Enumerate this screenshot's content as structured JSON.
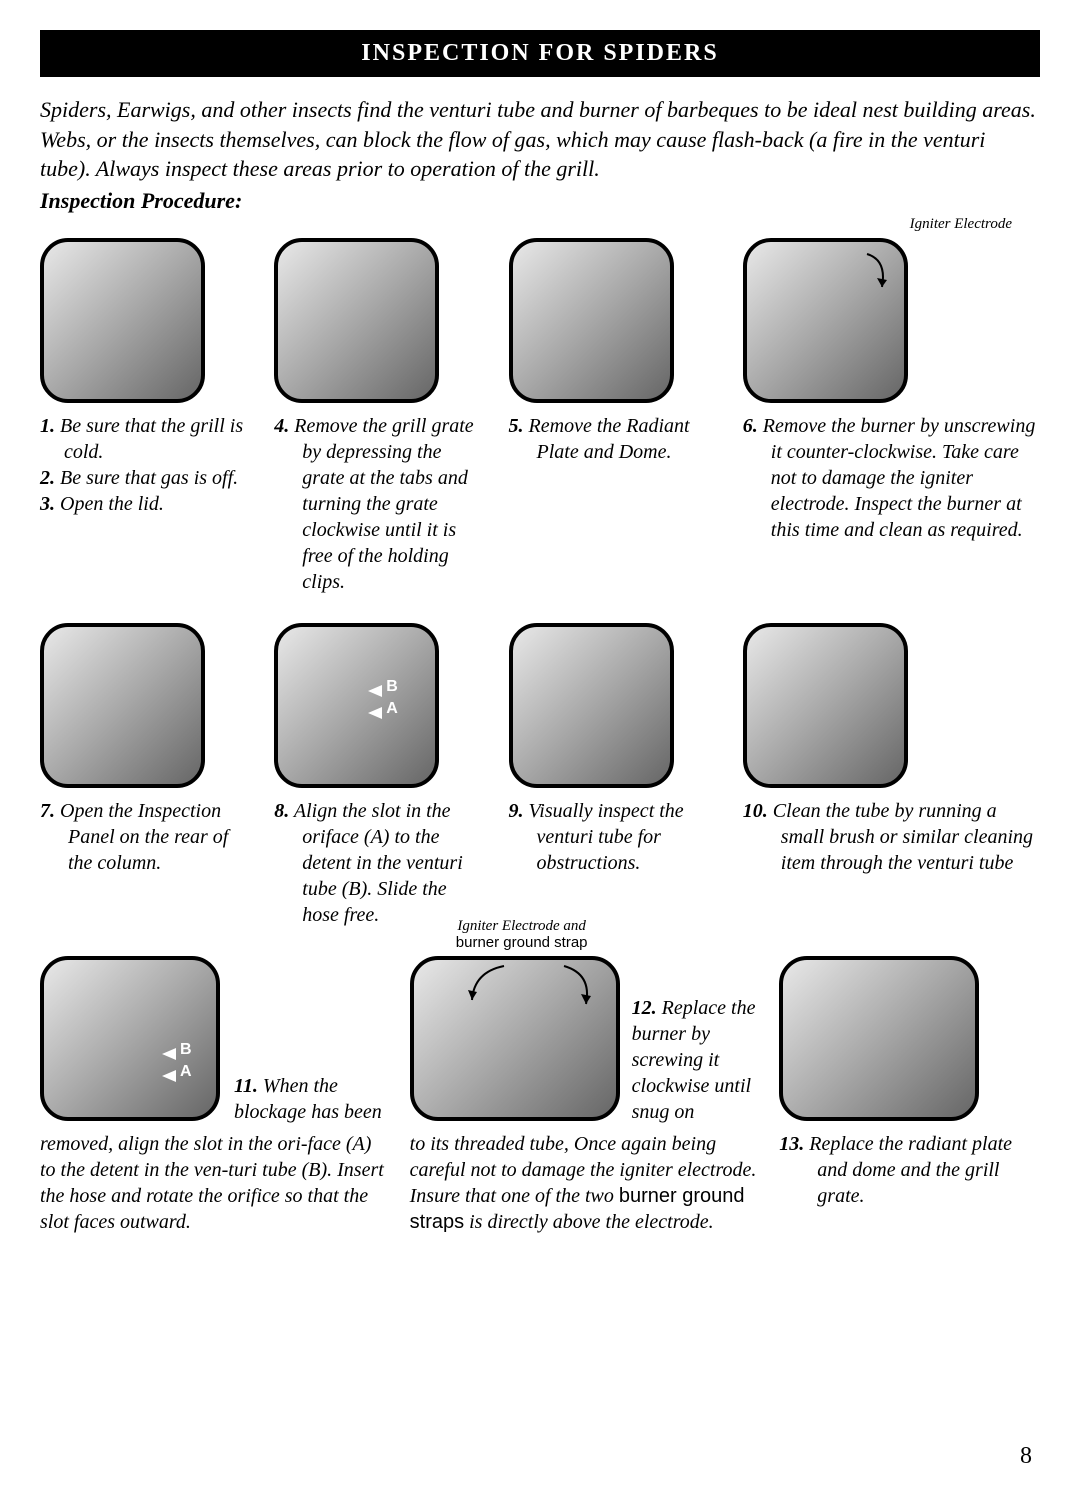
{
  "header": "INSPECTION FOR SPIDERS",
  "intro": "Spiders, Earwigs, and other insects find the venturi tube and burner of barbeques to be ideal nest building areas.  Webs, or the insects themselves, can block the flow of gas, which may cause flash-back (a fire in the venturi tube).  Always inspect these areas prior to operation of the grill.",
  "subheading": "Inspection Procedure:",
  "row1": {
    "c1": {
      "lines": [
        {
          "n": "1.",
          "t": "Be sure that the grill is cold."
        },
        {
          "n": "2.",
          "t": "Be sure that gas is off."
        },
        {
          "n": "3.",
          "t": "Open the lid."
        }
      ]
    },
    "c2": {
      "n": "4.",
      "t": "Remove the grill grate by depressing the grate at the tabs and turning the grate clockwise until it is free of the holding clips."
    },
    "c3": {
      "n": "5.",
      "t": "Remove the Radiant Plate and Dome."
    },
    "c4": {
      "label": "Igniter Electrode",
      "n": "6.",
      "t": "Remove the burner by unscrewing it counter-clockwise.  Take care not to damage the igniter electrode.  Inspect the burner at this time and clean as required."
    }
  },
  "row2": {
    "c1": {
      "n": "7.",
      "t": "Open the Inspection Panel on the rear of the column."
    },
    "c2": {
      "n": "8.",
      "t": "Align the slot in the oriface (A) to the detent in the venturi tube (B). Slide the hose free."
    },
    "c3": {
      "n": "9.",
      "t": "Visually inspect the venturi tube for obstructions."
    },
    "c4": {
      "n": "10.",
      "t": "Clean the tube by running a small brush or similar cleaning item through the venturi tube"
    }
  },
  "row3": {
    "c1": {
      "n": "11.",
      "lead": "When the blockage has been",
      "body": "removed, align the slot in the ori-face (A) to the detent in the ven-turi tube (B). Insert the hose and rotate the orifice so that the slot faces outward."
    },
    "c2": {
      "imglabel_a": "Igniter Electrode and",
      "imglabel_b": "burner ground strap",
      "n": "12.",
      "lead": "Replace the burner by screwing it clockwise until snug on",
      "body_a": "to its threaded tube, Once again being careful not to damage the igniter electrode. Insure that one of the two ",
      "body_b": "burner ground straps",
      "body_c": " is directly above the electrode."
    },
    "c3": {
      "n": "13.",
      "t": "Replace the radiant plate and dome and the grill grate."
    }
  },
  "pagenum": "8"
}
